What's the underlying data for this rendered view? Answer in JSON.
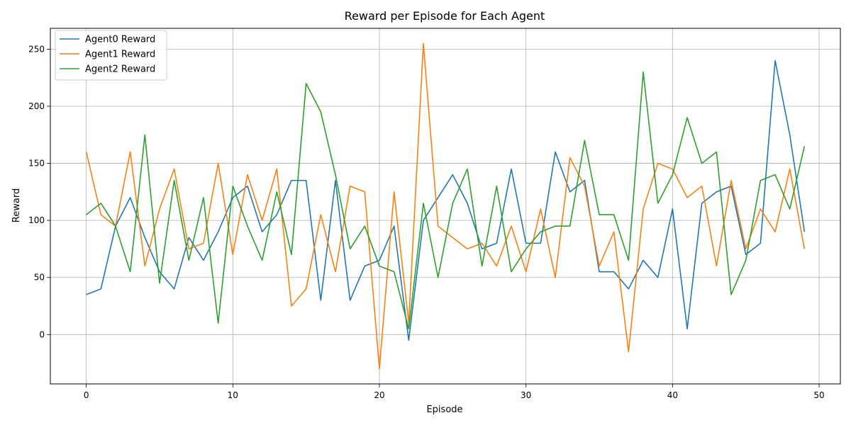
{
  "chart_data": {
    "type": "line",
    "title": "Reward per Episode for Each Agent",
    "xlabel": "Episode",
    "ylabel": "Reward",
    "xlim": [
      -2.45,
      51.45
    ],
    "ylim": [
      -43.25,
      268.25
    ],
    "xticks": [
      0,
      10,
      20,
      30,
      40,
      50
    ],
    "yticks": [
      0,
      50,
      100,
      150,
      200,
      250
    ],
    "grid": true,
    "legend": "top-left",
    "x": [
      0,
      1,
      2,
      3,
      4,
      5,
      6,
      7,
      8,
      9,
      10,
      11,
      12,
      13,
      14,
      15,
      16,
      17,
      18,
      19,
      20,
      21,
      22,
      23,
      24,
      25,
      26,
      27,
      28,
      29,
      30,
      31,
      32,
      33,
      34,
      35,
      36,
      37,
      38,
      39,
      40,
      41,
      42,
      43,
      44,
      45,
      46,
      47,
      48,
      49
    ],
    "series": [
      {
        "name": "Agent0 Reward",
        "color": "#1f77b4",
        "values": [
          35,
          40,
          95,
          120,
          85,
          55,
          40,
          85,
          65,
          90,
          120,
          130,
          90,
          105,
          135,
          135,
          30,
          135,
          30,
          60,
          65,
          95,
          -5,
          100,
          120,
          140,
          115,
          75,
          80,
          145,
          80,
          80,
          160,
          125,
          135,
          55,
          55,
          40,
          65,
          50,
          110,
          5,
          115,
          125,
          130,
          70,
          80,
          240,
          175,
          90
        ]
      },
      {
        "name": "Agent1 Reward",
        "color": "#ff7f0e",
        "values": [
          160,
          105,
          95,
          160,
          60,
          110,
          145,
          75,
          80,
          150,
          70,
          140,
          100,
          145,
          25,
          40,
          105,
          55,
          130,
          125,
          -30,
          125,
          10,
          255,
          95,
          85,
          75,
          80,
          60,
          95,
          55,
          110,
          50,
          155,
          130,
          60,
          90,
          -15,
          110,
          150,
          145,
          120,
          130,
          60,
          135,
          75,
          110,
          90,
          145,
          75
        ]
      },
      {
        "name": "Agent2 Reward",
        "color": "#2ca02c",
        "values": [
          105,
          115,
          95,
          55,
          175,
          45,
          135,
          65,
          120,
          10,
          130,
          95,
          65,
          125,
          70,
          220,
          195,
          140,
          75,
          95,
          60,
          55,
          5,
          115,
          50,
          115,
          145,
          60,
          130,
          55,
          75,
          90,
          95,
          95,
          170,
          105,
          105,
          65,
          230,
          115,
          140,
          190,
          150,
          160,
          35,
          65,
          135,
          140,
          110,
          165
        ]
      }
    ]
  }
}
